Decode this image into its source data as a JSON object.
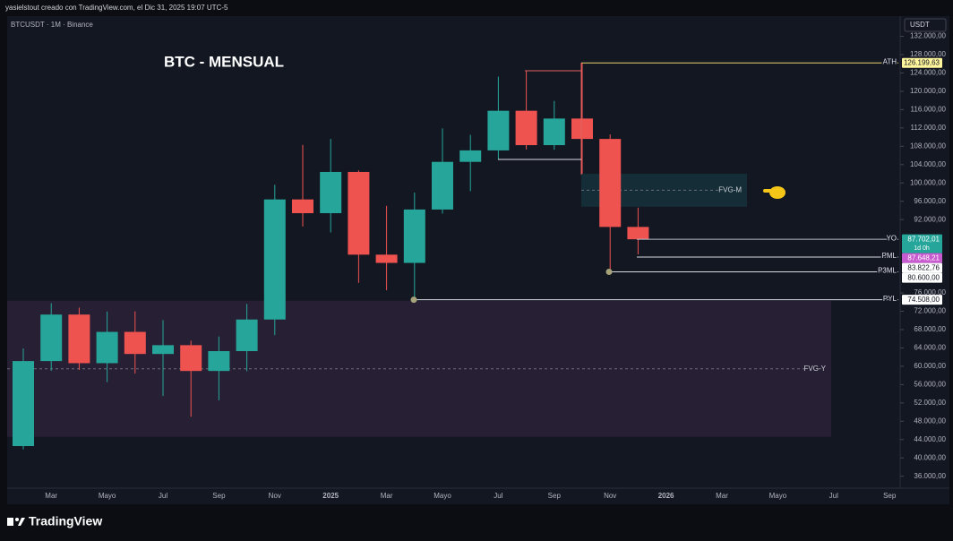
{
  "chart_data": {
    "type": "candlestick",
    "header": "yasielstout creado con TradingView.com, el Dic 31, 2025 19:07 UTC-5",
    "symbol": "BTCUSDT · 1M · Binance",
    "title": "BTC - MENSUAL",
    "currency": "USDT",
    "brand": "TradingView",
    "up_color": "#26a69a",
    "down_color": "#ef5350",
    "categories": [
      null,
      "Mar",
      null,
      "Mayo",
      null,
      "Jul",
      null,
      "Sep",
      null,
      "Nov",
      null,
      "2025",
      null,
      "Mar",
      null,
      "Mayo",
      null,
      "Jul",
      null,
      "Sep",
      null,
      "Nov",
      null,
      "2026",
      null,
      "Mar",
      null,
      "Mayo",
      null,
      "Jul",
      null,
      "Sep"
    ],
    "open": [
      42580,
      61130,
      71280,
      60670,
      67500,
      62680,
      64600,
      58970,
      63300,
      70200,
      96400,
      93400,
      102400,
      84350,
      82550,
      94200,
      104600,
      107100,
      115750,
      108250,
      114050,
      109600,
      90400,
      null,
      null,
      null,
      null,
      null,
      null,
      null,
      null,
      null
    ],
    "high": [
      63900,
      73750,
      72800,
      71950,
      71980,
      70080,
      65600,
      66500,
      73600,
      99600,
      108300,
      109600,
      102750,
      95000,
      97900,
      111900,
      110500,
      123200,
      124500,
      117900,
      126199.63,
      110600,
      94600,
      null,
      null,
      null,
      null,
      null,
      null,
      null,
      null,
      null
    ],
    "low": [
      41880,
      59000,
      59200,
      56550,
      58400,
      53500,
      49000,
      52550,
      58900,
      66800,
      90500,
      89200,
      78200,
      76600,
      74508,
      93300,
      98200,
      105100,
      107300,
      107250,
      102000,
      80600,
      84400,
      null,
      null,
      null,
      null,
      null,
      null,
      null,
      null,
      null
    ],
    "close": [
      61130,
      71280,
      60670,
      67500,
      62680,
      64600,
      58970,
      63300,
      70200,
      96400,
      93400,
      102400,
      84350,
      82550,
      94200,
      104600,
      107100,
      115750,
      108250,
      114050,
      109600,
      90400,
      87702.01,
      null,
      null,
      null,
      null,
      null,
      null,
      null,
      null,
      null
    ],
    "ylim": [
      33400,
      136400
    ],
    "yticks": [
      {
        "value": 132000,
        "label": "132.000,00"
      },
      {
        "value": 128000,
        "label": "128.000,00"
      },
      {
        "value": 124000,
        "label": "124.000,00"
      },
      {
        "value": 120000,
        "label": "120.000,00"
      },
      {
        "value": 116000,
        "label": "116.000,00"
      },
      {
        "value": 112000,
        "label": "112.000,00"
      },
      {
        "value": 108000,
        "label": "108.000,00"
      },
      {
        "value": 104000,
        "label": "104.000,00"
      },
      {
        "value": 100000,
        "label": "100.000,00"
      },
      {
        "value": 96000,
        "label": "96.000,00"
      },
      {
        "value": 92000,
        "label": "92.000,00"
      },
      {
        "value": 76000,
        "label": "76.000,00"
      },
      {
        "value": 72000,
        "label": "72.000,00"
      },
      {
        "value": 68000,
        "label": "68.000,00"
      },
      {
        "value": 64000,
        "label": "64.000,00"
      },
      {
        "value": 60000,
        "label": "60.000,00"
      },
      {
        "value": 56000,
        "label": "56.000,00"
      },
      {
        "value": 52000,
        "label": "52.000,00"
      },
      {
        "value": 48000,
        "label": "48.000,00"
      },
      {
        "value": 44000,
        "label": "44.000,00"
      },
      {
        "value": 40000,
        "label": "40.000,00"
      },
      {
        "value": 36000,
        "label": "36.000,00"
      }
    ],
    "zones": [
      {
        "label": "FVG-Y",
        "from": 44600,
        "to": 74300,
        "color": "#2a2035"
      },
      {
        "label": "FVG-M",
        "from": 94800,
        "to": 102000,
        "color": "#15303a"
      }
    ],
    "levels": [
      {
        "name": "ATH",
        "value": 126199.63,
        "color": "#e8d36a"
      },
      {
        "name": "YO",
        "value": 87702.01,
        "color": "#b8bcc6"
      },
      {
        "name": "PML",
        "value": 83822.76,
        "color": "#d8dbe2"
      },
      {
        "name": "P3ML",
        "value": 80600,
        "color": "#d8dbe2"
      },
      {
        "name": "PYL",
        "value": 74508,
        "color": "#d8dbe2"
      }
    ],
    "price_labels": [
      {
        "value": 126199.63,
        "label": "126.199,63",
        "color": "#fff59d",
        "text_color": "#131722"
      },
      {
        "value": 87702.01,
        "label": "87.702,01",
        "sub": "1d 0h",
        "color": "#26a69a",
        "text_color": "#ffffff"
      },
      {
        "value": 87648.21,
        "label": "87.648,21",
        "color": "#c95bd1",
        "text_color": "#ffffff"
      },
      {
        "value": 83822.76,
        "label": "83.822,76",
        "color": "#ffffff",
        "text_color": "#131722"
      },
      {
        "value": 80600,
        "label": "80.600,00",
        "color": "#ffffff",
        "text_color": "#131722"
      },
      {
        "value": 74508,
        "label": "74.508,00",
        "color": "#ffffff",
        "text_color": "#131722"
      }
    ]
  }
}
